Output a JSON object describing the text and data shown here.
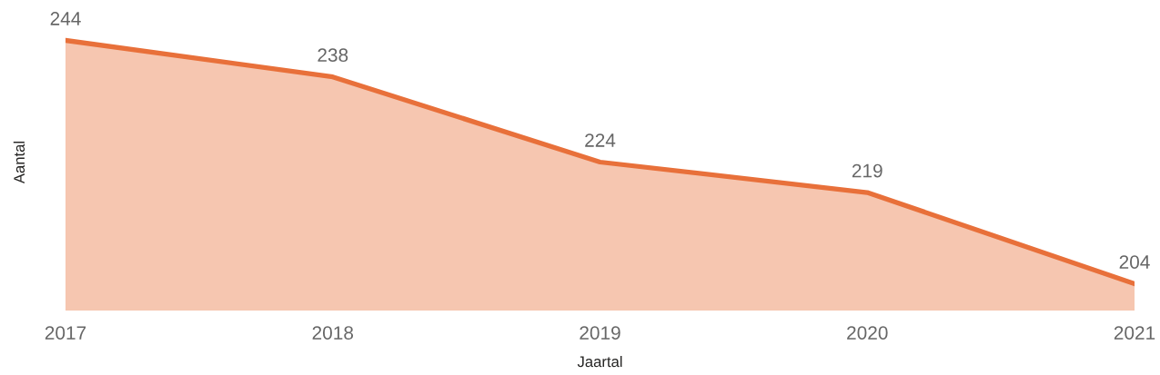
{
  "chart_data": {
    "type": "area",
    "xlabel": "Jaartal",
    "ylabel": "Aantal",
    "categories": [
      "2017",
      "2018",
      "2019",
      "2020",
      "2021"
    ],
    "series": [
      {
        "color": "#e8703a",
        "values": [
          244,
          238,
          224,
          219,
          204
        ]
      }
    ],
    "data_labels": true,
    "tick_labels": "x"
  }
}
